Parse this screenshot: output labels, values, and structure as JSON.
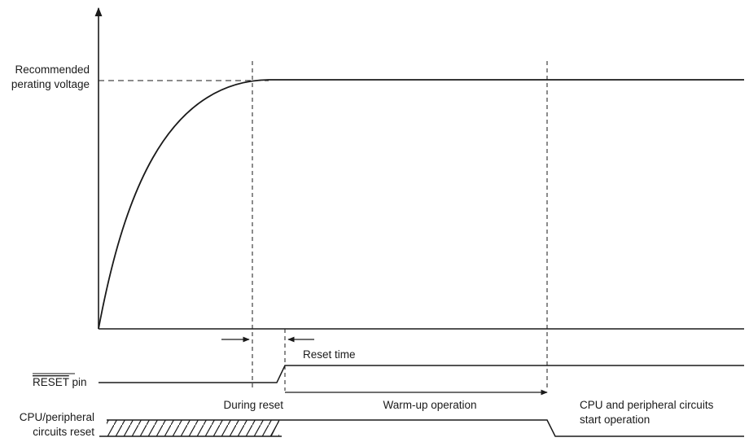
{
  "labels": {
    "voltage_line1": "Recommended",
    "voltage_line2": "perating voltage",
    "reset_time": "Reset time",
    "reset_pin": "RESET",
    "reset_pin_suffix": " pin",
    "cpu_line1": "CPU/peripheral",
    "cpu_line2": "circuits reset",
    "during_reset": "During reset",
    "warm_up": "Warm-up operation",
    "start_line1": "CPU and peripheral circuits",
    "start_line2": "start operation"
  },
  "colors": {
    "line": "#1a1a1a",
    "background": "#ffffff"
  }
}
